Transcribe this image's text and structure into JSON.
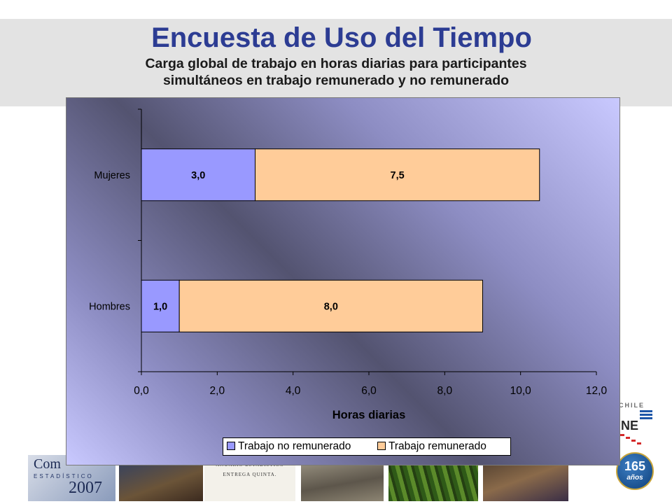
{
  "slide": {
    "title": "Encuesta de Uso del Tiempo",
    "subtitle_line1": "Carga global de trabajo en horas diarias para participantes",
    "subtitle_line2": "simultáneos en trabajo remunerado y no remunerado"
  },
  "logos": {
    "compendio_word": "Com",
    "compendio_est": "ESTADÍSTICO",
    "compendio_year": "2007",
    "anuario_line1": "ANUARIO ESTADÍSTICO",
    "anuario_line2": "ENTREGA QUINTA.",
    "ine_country": "CHILE",
    "ine_letters": "INE",
    "badge_number": "165",
    "badge_word": "años"
  },
  "colors": {
    "title": "#2c3c93",
    "series_unpaid": "#9999ff",
    "series_paid": "#ffcc99"
  },
  "chart_data": {
    "type": "bar",
    "orientation": "horizontal",
    "stacked": true,
    "categories": [
      "Mujeres",
      "Hombres"
    ],
    "series": [
      {
        "name": "Trabajo no remunerado",
        "values": [
          3.0,
          1.0
        ],
        "labels": [
          "3,0",
          "1,0"
        ],
        "color": "#9999ff"
      },
      {
        "name": "Trabajo remunerado",
        "values": [
          7.5,
          8.0
        ],
        "labels": [
          "7,5",
          "8,0"
        ],
        "color": "#ffcc99"
      }
    ],
    "xlabel": "Horas diarias",
    "xlim": [
      0,
      12
    ],
    "xticks": [
      0,
      2,
      4,
      6,
      8,
      10,
      12
    ],
    "xtick_labels": [
      "0,0",
      "2,0",
      "4,0",
      "6,0",
      "8,0",
      "10,0",
      "12,0"
    ],
    "grid": false,
    "legend": "bottom"
  }
}
